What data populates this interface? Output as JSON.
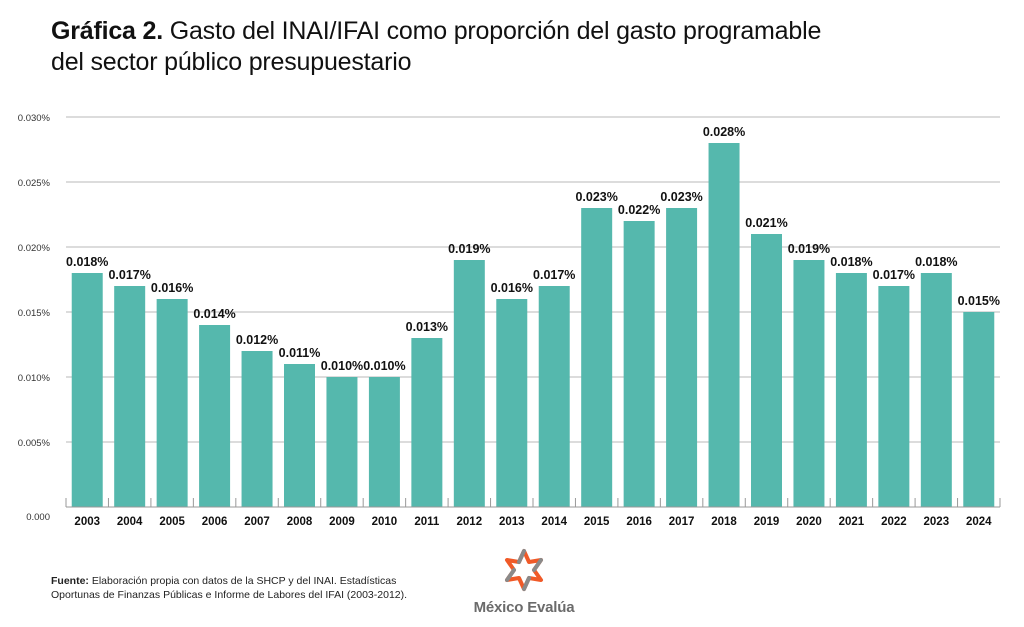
{
  "title": {
    "bold": "Gráfica 2.",
    "line1": "Gasto del INAI/IFAI como proporción del gasto programable",
    "line2": "del sector público presupuestario"
  },
  "chart_data": {
    "type": "bar",
    "title": "Gráfica 2. Gasto del INAI/IFAI como proporción del gasto programable del sector público presupuestario",
    "xlabel": "",
    "ylabel": "",
    "ylim": [
      0,
      0.03
    ],
    "yticks": [
      0,
      0.005,
      0.01,
      0.015,
      0.02,
      0.025,
      0.03
    ],
    "ytick_labels": [
      "0.000",
      "0.005%",
      "0.010%",
      "0.015%",
      "0.020%",
      "0.025%",
      "0.030%"
    ],
    "grid": true,
    "legend": "none",
    "categories": [
      "2003",
      "2004",
      "2005",
      "2006",
      "2007",
      "2008",
      "2009",
      "2010",
      "2011",
      "2012",
      "2013",
      "2014",
      "2015",
      "2016",
      "2017",
      "2018",
      "2019",
      "2020",
      "2021",
      "2022",
      "2023",
      "2024"
    ],
    "values": [
      0.018,
      0.017,
      0.016,
      0.014,
      0.012,
      0.011,
      0.01,
      0.01,
      0.013,
      0.019,
      0.016,
      0.017,
      0.023,
      0.022,
      0.023,
      0.028,
      0.021,
      0.019,
      0.018,
      0.017,
      0.018,
      0.015
    ],
    "data_labels": [
      "0.018%",
      "0.017%",
      "0.016%",
      "0.014%",
      "0.012%",
      "0.011%",
      "0.010%",
      "0.010%",
      "0.013%",
      "0.019%",
      "0.016%",
      "0.017%",
      "0.023%",
      "0.022%",
      "0.023%",
      "0.028%",
      "0.021%",
      "0.019%",
      "0.018%",
      "0.017%",
      "0.018%",
      "0.015%"
    ],
    "unit": "%",
    "colors": {
      "bar": "#55b8ad",
      "grid": "#b8b8b8",
      "axis": "#999999"
    }
  },
  "source": {
    "label": "Fuente:",
    "text_line1": "Elaboración propia con datos de la SHCP y del INAI. Estadísticas",
    "text_line2": "Oportunas de Finanzas Públicas e Informe de Labores del IFAI (2003-2012)."
  },
  "logo": {
    "name": "México Evalúa",
    "colors": {
      "orange": "#f05a28",
      "gray": "#8a8a8a"
    }
  }
}
